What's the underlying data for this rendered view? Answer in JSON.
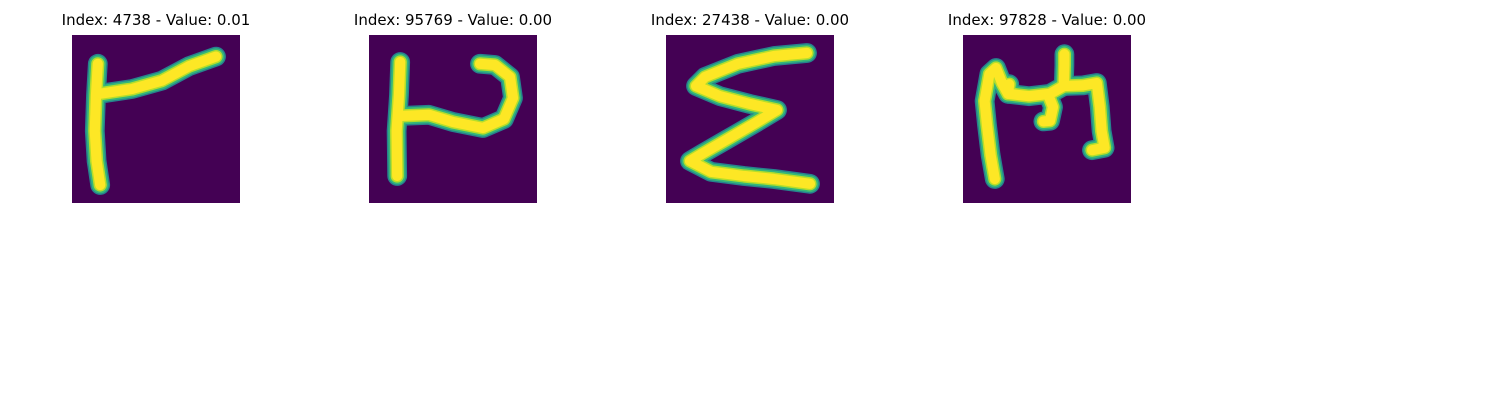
{
  "figure": {
    "panels": [
      {
        "title": "Index: 4738 - Value: 0.01",
        "glyph": "handwritten-flag-shape"
      },
      {
        "title": "Index: 95769 - Value: 0.00",
        "glyph": "handwritten-P-like-shape"
      },
      {
        "title": "Index: 27438 - Value: 0.00",
        "glyph": "handwritten-sigma-shape"
      },
      {
        "title": "Index: 97828 - Value: 0.00",
        "glyph": "handwritten-m-like-shape"
      }
    ],
    "colors": {
      "background": "#440154",
      "stroke_core": "#fde725",
      "stroke_mid": "#b5de2b",
      "stroke_edge": "#35b779",
      "stroke_halo": "#26828e"
    }
  }
}
